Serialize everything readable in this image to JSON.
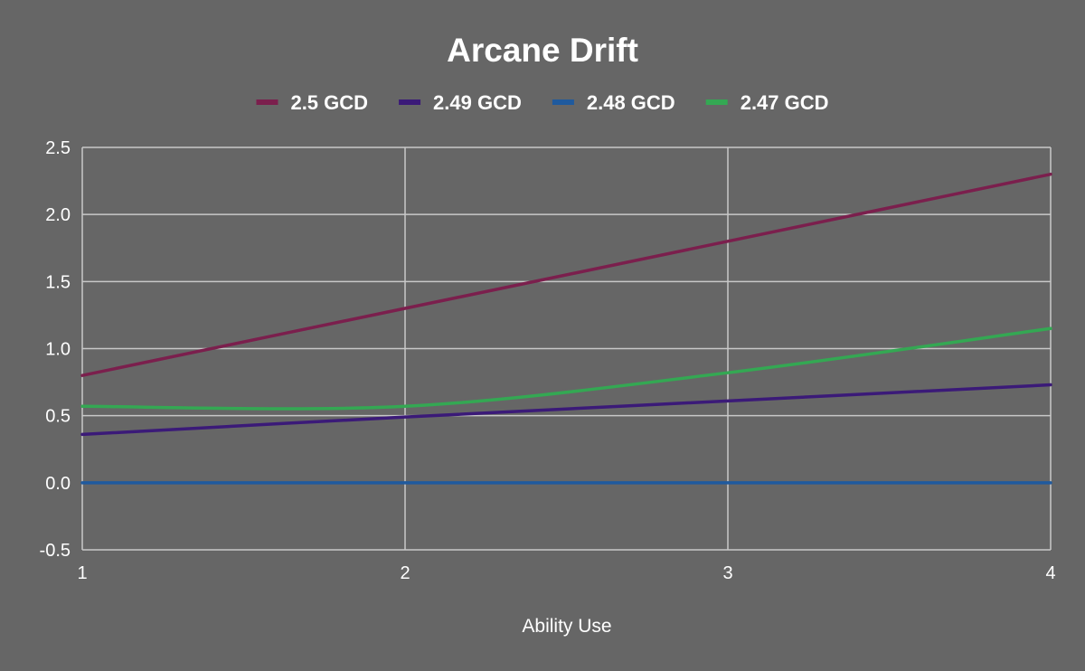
{
  "chart_data": {
    "type": "line",
    "title": "Arcane Drift",
    "xlabel": "Ability Use",
    "ylabel": "",
    "x": [
      1,
      2,
      3,
      4
    ],
    "xlim": [
      1,
      4
    ],
    "ylim": [
      -0.5,
      2.5
    ],
    "x_ticks": [
      "1",
      "2",
      "3",
      "4"
    ],
    "y_ticks": [
      "-0.5",
      "0.0",
      "0.5",
      "1.0",
      "1.5",
      "2.0",
      "2.5"
    ],
    "grid": true,
    "legend_position": "top",
    "series": [
      {
        "name": "2.5 GCD",
        "color": "#7b1f4d",
        "values": [
          0.8,
          1.3,
          1.8,
          2.3
        ]
      },
      {
        "name": "2.49 GCD",
        "color": "#3b1a78",
        "values": [
          0.36,
          0.49,
          0.61,
          0.73
        ]
      },
      {
        "name": "2.48 GCD",
        "color": "#1f5a9e",
        "values": [
          0.0,
          0.0,
          0.0,
          0.0
        ]
      },
      {
        "name": "2.47 GCD",
        "color": "#34a853",
        "values": [
          0.57,
          0.57,
          0.82,
          1.15
        ]
      }
    ]
  }
}
